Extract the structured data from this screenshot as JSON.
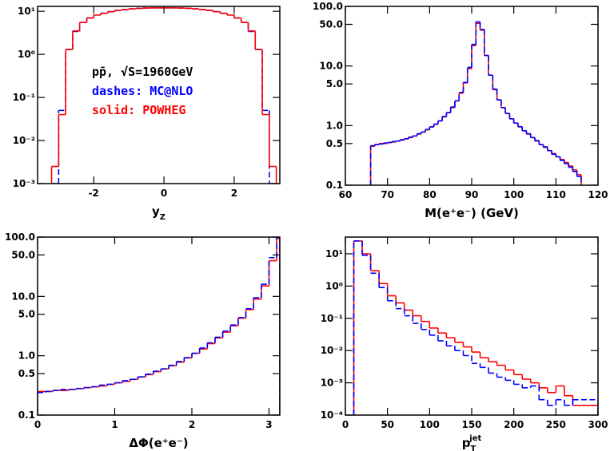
{
  "chart_data": [
    {
      "type": "histogram",
      "log_y": true,
      "xlabel": {
        "main": "y",
        "sub": "Z"
      },
      "xlim": [
        -3.6,
        3.3
      ],
      "xticks": [
        -2,
        0,
        2
      ],
      "ylim": [
        0.001,
        13
      ],
      "yticks": [
        {
          "value": 0.001,
          "label": "10⁻³"
        },
        {
          "value": 0.01,
          "label": "10⁻²"
        },
        {
          "value": 0.1,
          "label": "10⁻¹"
        },
        {
          "value": 1,
          "label": "10⁰"
        },
        {
          "value": 10,
          "label": "10¹"
        }
      ],
      "annotation": "pp̄, √S=1960GeV",
      "legend": true,
      "bins": [
        -3.2,
        -3,
        -2.8,
        -2.6,
        -2.4,
        -2.2,
        -2,
        -1.8,
        -1.6,
        -1.4,
        -1.2,
        -1,
        -0.8,
        -0.6,
        -0.4,
        -0.2,
        0,
        0.2,
        0.4,
        0.6,
        0.8,
        1,
        1.2,
        1.4,
        1.6,
        1.8,
        2,
        2.2,
        2.4,
        2.6,
        2.8,
        3,
        3.2
      ],
      "series": [
        {
          "name": "dashes: MC@NLO",
          "color": "#0000ff",
          "style": "dashed",
          "values": [
            0.001,
            0.05,
            1.3,
            3.4,
            5.5,
            7,
            8.2,
            9,
            9.8,
            10.5,
            11,
            11.4,
            11.7,
            11.9,
            12,
            12,
            12,
            12,
            11.9,
            11.7,
            11.4,
            11,
            10.5,
            9.8,
            9,
            8.2,
            7,
            5.5,
            3.4,
            1.3,
            0.05,
            0.001
          ]
        },
        {
          "name": "solid: POWHEG",
          "color": "#ff0000",
          "style": "solid",
          "values": [
            0.0025,
            0.04,
            1.3,
            3.5,
            5.5,
            7,
            8.2,
            9,
            9.8,
            10.5,
            11,
            11.4,
            11.7,
            11.9,
            12,
            12,
            12,
            12,
            11.9,
            11.7,
            11.4,
            11,
            10.5,
            9.8,
            9,
            8.2,
            7,
            5.5,
            3.5,
            1.3,
            0.04,
            0.0025
          ]
        }
      ]
    },
    {
      "type": "histogram",
      "log_y": true,
      "xlabel": "M(e⁺e⁻) (GeV)",
      "xlim": [
        60,
        120
      ],
      "xticks": [
        60,
        70,
        80,
        90,
        100,
        110,
        120
      ],
      "ylim": [
        0.1,
        100
      ],
      "yticks": [
        0.1,
        0.5,
        {
          "value": 1,
          "label": "1.0"
        },
        {
          "value": 5,
          "label": "5.0"
        },
        {
          "value": 10,
          "label": "10.0"
        },
        {
          "value": 50,
          "label": "50.0"
        },
        {
          "value": 100,
          "label": "100.0"
        }
      ],
      "bins": [
        66,
        67,
        68,
        69,
        70,
        71,
        72,
        73,
        74,
        75,
        76,
        77,
        78,
        79,
        80,
        81,
        82,
        83,
        84,
        85,
        86,
        87,
        88,
        89,
        90,
        91,
        92,
        93,
        94,
        95,
        96,
        97,
        98,
        99,
        100,
        101,
        102,
        103,
        104,
        105,
        106,
        107,
        108,
        109,
        110,
        111,
        112,
        113,
        114,
        115,
        116
      ],
      "series": [
        {
          "color": "#ff0000",
          "style": "solid",
          "values": [
            0.45,
            0.48,
            0.5,
            0.5,
            0.52,
            0.53,
            0.55,
            0.57,
            0.6,
            0.63,
            0.67,
            0.72,
            0.78,
            0.85,
            0.95,
            1.05,
            1.2,
            1.4,
            1.65,
            2,
            2.6,
            3.5,
            5.2,
            9,
            22,
            52,
            40,
            15,
            7,
            4,
            2.7,
            2,
            1.6,
            1.3,
            1.1,
            0.95,
            0.82,
            0.72,
            0.63,
            0.55,
            0.48,
            0.43,
            0.38,
            0.34,
            0.3,
            0.27,
            0.24,
            0.21,
            0.18,
            0.15
          ]
        },
        {
          "color": "#0000ff",
          "style": "dashed",
          "values": [
            0.46,
            0.48,
            0.49,
            0.51,
            0.52,
            0.54,
            0.55,
            0.58,
            0.6,
            0.64,
            0.67,
            0.73,
            0.78,
            0.86,
            0.95,
            1.06,
            1.2,
            1.42,
            1.65,
            2.05,
            2.6,
            3.6,
            5.3,
            9.5,
            23,
            55,
            41,
            15,
            7,
            4.1,
            2.7,
            2,
            1.6,
            1.3,
            1.1,
            0.96,
            0.82,
            0.73,
            0.63,
            0.56,
            0.48,
            0.44,
            0.38,
            0.33,
            0.3,
            0.26,
            0.23,
            0.2,
            0.17,
            0.14
          ]
        }
      ]
    },
    {
      "type": "histogram",
      "log_y": true,
      "xlabel": "ΔΦ(e⁺e⁻)",
      "xlim": [
        0,
        3.14
      ],
      "xticks": [
        0,
        1,
        2,
        3
      ],
      "ylim": [
        0.1,
        100
      ],
      "yticks": [
        0.1,
        0.5,
        {
          "value": 1,
          "label": "1.0"
        },
        {
          "value": 5,
          "label": "5.0"
        },
        {
          "value": 10,
          "label": "10.0"
        },
        {
          "value": 50,
          "label": "50.0"
        },
        {
          "value": 100,
          "label": "100.0"
        }
      ],
      "bins": [
        0,
        0.1,
        0.2,
        0.3,
        0.4,
        0.5,
        0.6,
        0.7,
        0.8,
        0.9,
        1,
        1.1,
        1.2,
        1.3,
        1.4,
        1.5,
        1.6,
        1.7,
        1.8,
        1.9,
        2,
        2.1,
        2.2,
        2.3,
        2.4,
        2.5,
        2.6,
        2.7,
        2.8,
        2.9,
        3,
        3.1,
        3.14
      ],
      "series": [
        {
          "color": "#ff0000",
          "style": "solid",
          "values": [
            0.25,
            0.25,
            0.26,
            0.26,
            0.27,
            0.28,
            0.29,
            0.3,
            0.31,
            0.33,
            0.35,
            0.37,
            0.4,
            0.44,
            0.48,
            0.54,
            0.6,
            0.68,
            0.78,
            0.92,
            1.1,
            1.3,
            1.6,
            2,
            2.5,
            3.2,
            4.3,
            6,
            9,
            15,
            40,
            95
          ]
        },
        {
          "color": "#0000ff",
          "style": "dashed",
          "values": [
            0.24,
            0.25,
            0.26,
            0.27,
            0.27,
            0.28,
            0.29,
            0.3,
            0.32,
            0.33,
            0.35,
            0.38,
            0.4,
            0.44,
            0.49,
            0.55,
            0.6,
            0.69,
            0.8,
            0.93,
            1.1,
            1.35,
            1.65,
            2.05,
            2.6,
            3.3,
            4.4,
            6.2,
            9.5,
            16,
            45,
            100
          ]
        }
      ]
    },
    {
      "type": "histogram",
      "log_y": true,
      "xlabel": {
        "main": "p",
        "sub": "T",
        "sup": "jet"
      },
      "xlim": [
        0,
        300
      ],
      "xticks": [
        0,
        50,
        100,
        150,
        200,
        250,
        300
      ],
      "ylim": [
        0.0001,
        33
      ],
      "yticks": [
        {
          "value": 0.0001,
          "label": "10⁻⁴"
        },
        {
          "value": 0.001,
          "label": "10⁻³"
        },
        {
          "value": 0.01,
          "label": "10⁻²"
        },
        {
          "value": 0.1,
          "label": "10⁻¹"
        },
        {
          "value": 1,
          "label": "10⁰"
        },
        {
          "value": 10,
          "label": "10¹"
        }
      ],
      "bins": [
        10,
        20,
        30,
        40,
        50,
        60,
        70,
        80,
        90,
        100,
        110,
        120,
        130,
        140,
        150,
        160,
        170,
        180,
        190,
        200,
        210,
        220,
        230,
        240,
        250,
        260,
        270,
        280,
        290,
        300
      ],
      "series": [
        {
          "color": "#ff0000",
          "style": "solid",
          "values": [
            25,
            10,
            3,
            1.2,
            0.5,
            0.3,
            0.18,
            0.12,
            0.08,
            0.05,
            0.035,
            0.025,
            0.018,
            0.013,
            0.009,
            0.006,
            0.0045,
            0.0035,
            0.0025,
            0.0018,
            0.0013,
            0.001,
            0.0007,
            0.0005,
            0.0008,
            0.0004,
            0.0002,
            0.0002,
            0.0002
          ]
        },
        {
          "color": "#0000ff",
          "style": "dashed",
          "values": [
            25,
            9,
            2.5,
            0.9,
            0.35,
            0.2,
            0.12,
            0.07,
            0.045,
            0.03,
            0.02,
            0.014,
            0.01,
            0.007,
            0.004,
            0.003,
            0.002,
            0.0015,
            0.0012,
            0.0009,
            0.0007,
            0.0008,
            0.0003,
            0.0002,
            0.0003,
            0.0002,
            0.0003,
            0.0003,
            0.0003
          ]
        }
      ]
    }
  ]
}
